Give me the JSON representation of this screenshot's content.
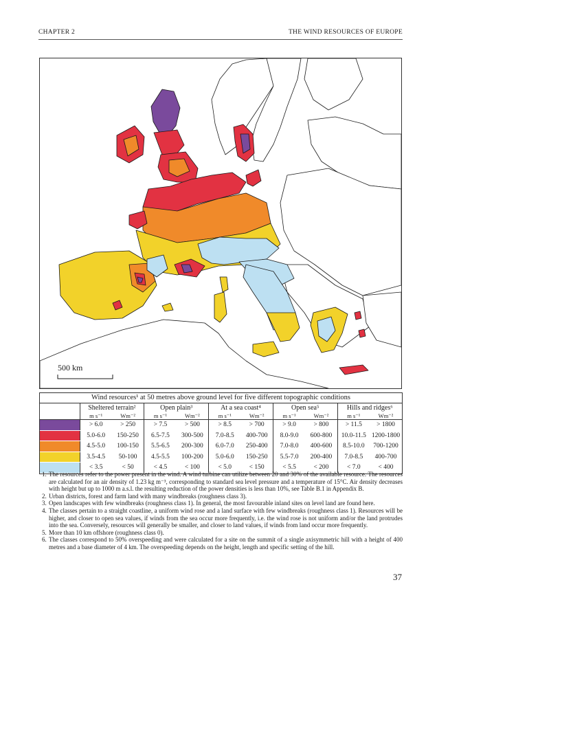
{
  "header": {
    "chapter": "CHAPTER 2",
    "section_title": "THE WIND RESOURCES OF EUROPE"
  },
  "map": {
    "scale_label": "500 km",
    "colors": {
      "class1": "#7a4a9c",
      "class2": "#e23242",
      "class3": "#f08a2a",
      "class4": "#f2d22a",
      "class5": "#bde0f2",
      "outline": "#1a1a1a"
    }
  },
  "legend": {
    "title": "Wind resources¹ at 50 metres above ground level for five different topographic conditions",
    "groups": [
      {
        "name": "Sheltered terrain²",
        "unit_speed": "m s⁻¹",
        "unit_power": "Wm⁻²"
      },
      {
        "name": "Open plain³",
        "unit_speed": "m s⁻¹",
        "unit_power": "Wm⁻²"
      },
      {
        "name": "At a sea coast⁴",
        "unit_speed": "m s⁻¹",
        "unit_power": "Wm⁻²"
      },
      {
        "name": "Open sea⁵",
        "unit_speed": "m s⁻¹",
        "unit_power": "Wm⁻²"
      },
      {
        "name": "Hills and ridges⁶",
        "unit_speed": "m s⁻¹",
        "unit_power": "Wm⁻²"
      }
    ],
    "rows": [
      {
        "color": "#7a4a9c",
        "cells": [
          "> 6.0",
          "> 250",
          "> 7.5",
          "> 500",
          "> 8.5",
          "> 700",
          "> 9.0",
          "> 800",
          "> 11.5",
          "> 1800"
        ]
      },
      {
        "color": "#e23242",
        "cells": [
          "5.0-6.0",
          "150-250",
          "6.5-7.5",
          "300-500",
          "7.0-8.5",
          "400-700",
          "8.0-9.0",
          "600-800",
          "10.0-11.5",
          "1200-1800"
        ]
      },
      {
        "color": "#f08a2a",
        "cells": [
          "4.5-5.0",
          "100-150",
          "5.5-6.5",
          "200-300",
          "6.0-7.0",
          "250-400",
          "7.0-8.0",
          "400-600",
          "8.5-10.0",
          "700-1200"
        ]
      },
      {
        "color": "#f2d22a",
        "cells": [
          "3.5-4.5",
          "50-100",
          "4.5-5.5",
          "100-200",
          "5.0-6.0",
          "150-250",
          "5.5-7.0",
          "200-400",
          "7.0-8.5",
          "400-700"
        ]
      },
      {
        "color": "#bde0f2",
        "cells": [
          "< 3.5",
          "< 50",
          "< 4.5",
          "< 100",
          "< 5.0",
          "< 150",
          "< 5.5",
          "< 200",
          "< 7.0",
          "< 400"
        ]
      }
    ]
  },
  "notes": [
    "The resources refer to the power present in the wind. A wind turbine can utilize between 20 and 30% of the available resource. The resources are calculated for an air density of 1.23 kg m⁻³, corresponding to standard sea level pressure and a temperature of 15°C. Air density decreases with height but up to 1000 m a.s.l. the resulting reduction of the power densities is less than 10%, see Table B.1 in Appendix B.",
    "Urban districts, forest and farm land with many windbreaks (roughness class 3).",
    "Open landscapes with few windbreaks (roughness class 1). In general, the most favourable inland sites on level land are found here.",
    "The classes pertain to a straight coastline, a uniform wind rose and a land surface with few windbreaks (roughness class 1). Resources will be higher, and closer to open sea values, if winds from the sea occur more frequently, i.e. the wind rose is not uniform and/or the land protrudes into the sea. Conversely, resources will generally be smaller, and closer to land values, if winds from land occur more frequently.",
    "More than 10 km offshore (roughness class 0).",
    "The classes correspond to 50% overspeeding and were calculated for a site on the summit of a single axisymmetric hill with a height of 400 metres and a base diameter of 4 km. The overspeeding depends on the height, length and specific setting of the hill."
  ],
  "page_number": "37"
}
